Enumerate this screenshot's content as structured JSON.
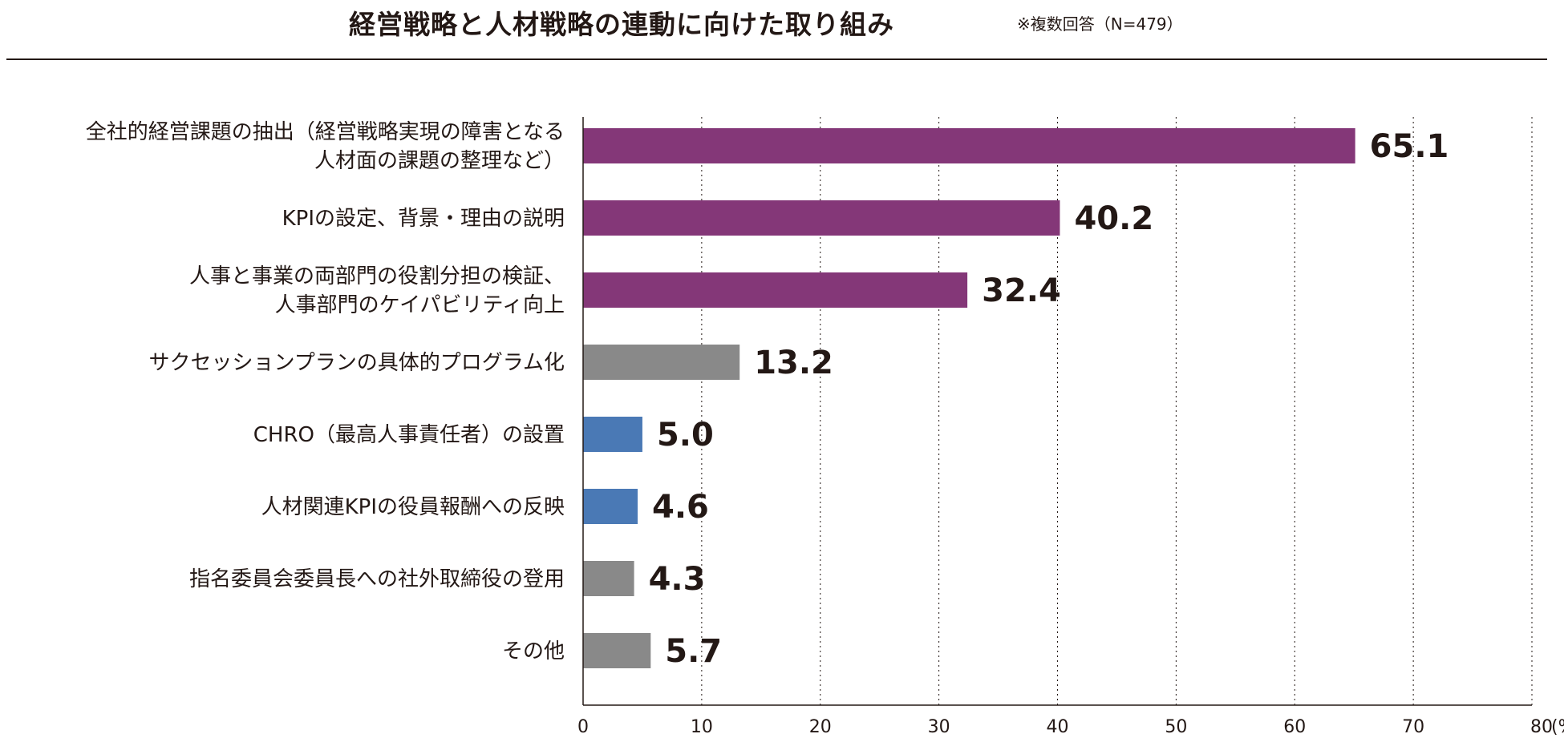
{
  "header": {
    "title": "経営戦略と人材戦略の連動に向けた取り組み",
    "note": "※複数回答（N=479）"
  },
  "colors": {
    "purple": "#843778",
    "gray": "#898989",
    "blue": "#4a79b5",
    "text": "#231815"
  },
  "chart_data": {
    "type": "bar",
    "orientation": "horizontal",
    "title": "経営戦略と人材戦略の連動に向けた取り組み",
    "xunit": "(%)",
    "xlim": [
      0,
      80
    ],
    "xticks": [
      "0",
      "10",
      "20",
      "30",
      "40",
      "50",
      "60",
      "70",
      "80"
    ],
    "grid": "vertical-dotted",
    "categories": [
      [
        "全社的経営課題の抽出（経営戦略実現の障害となる",
        "人材面の課題の整理など）"
      ],
      [
        "KPIの設定、背景・理由の説明"
      ],
      [
        "人事と事業の両部門の役割分担の検証、",
        "人事部門のケイパビリティ向上"
      ],
      [
        "サクセッションプランの具体的プログラム化"
      ],
      [
        "CHRO（最高人事責任者）の設置"
      ],
      [
        "人材関連KPIの役員報酬への反映"
      ],
      [
        "指名委員会委員長への社外取締役の登用"
      ],
      [
        "その他"
      ]
    ],
    "values": [
      65.1,
      40.2,
      32.4,
      13.2,
      5.0,
      4.6,
      4.3,
      5.7
    ],
    "value_labels": [
      "65.1",
      "40.2",
      "32.4",
      "13.2",
      "5.0",
      "4.6",
      "4.3",
      "5.7"
    ],
    "bar_colors": [
      "purple",
      "purple",
      "purple",
      "gray",
      "blue",
      "blue",
      "gray",
      "gray"
    ]
  }
}
